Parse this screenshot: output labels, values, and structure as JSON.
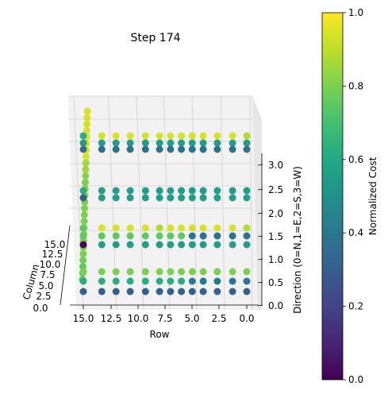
{
  "chart_data": {
    "type": "scatter",
    "title": "Step 174",
    "xlabel": "Row",
    "ylabel": "Column",
    "zlabel": "Direction (0=N,1=E,2=S,3=W)",
    "colorbar_label": "Normalized Cost",
    "colormap": "viridis",
    "xlim": [
      0,
      16
    ],
    "ylim": [
      0,
      16
    ],
    "zlim": [
      0,
      3
    ],
    "row_ticks": [
      "15.0",
      "12.5",
      "10.0",
      "7.5",
      "5.0",
      "2.5",
      "0.0"
    ],
    "col_ticks": [
      "15.0",
      "12.5",
      "10.0",
      "7.5",
      "5.0",
      "2.5",
      "0.0"
    ],
    "z_ticks": [
      "0.0",
      "0.5",
      "1.0",
      "1.5",
      "2.0",
      "2.5",
      "3.0"
    ],
    "cbar_ticks": [
      "0.0",
      "0.2",
      "0.4",
      "0.6",
      "0.8",
      "1.0"
    ],
    "rows_x": [
      15,
      13.3,
      12,
      10.7,
      9.3,
      8,
      7,
      6,
      5,
      4,
      2.7,
      1.3,
      0
    ],
    "layers": [
      {
        "direction": 3,
        "values": [
          0.62,
          0.94,
          0.94,
          0.94,
          0.94,
          0.94,
          0.94,
          0.94,
          0.94,
          0.94,
          0.94,
          0.94,
          0.88
        ]
      },
      {
        "direction": 3,
        "values": [
          0.55,
          0.55,
          0.55,
          0.55,
          0.55,
          0.55,
          0.55,
          0.55,
          0.55,
          0.55,
          0.55,
          0.55,
          0.55
        ]
      },
      {
        "direction": 3,
        "values": [
          0.37,
          0.37,
          0.37,
          0.37,
          0.37,
          0.37,
          0.37,
          0.37,
          0.37,
          0.37,
          0.37,
          0.37,
          0.37
        ]
      },
      {
        "direction": 2,
        "values": [
          0.62,
          0.55,
          0.55,
          0.55,
          0.55,
          0.55,
          0.55,
          0.55,
          0.55,
          0.55,
          0.55,
          0.55,
          0.55
        ]
      },
      {
        "direction": 2,
        "values": [
          0.3,
          0.55,
          0.55,
          0.55,
          0.55,
          0.55,
          0.55,
          0.55,
          0.55,
          0.55,
          0.55,
          0.55,
          0.55
        ]
      },
      {
        "direction": 1,
        "values": [
          0.75,
          0.94,
          0.94,
          0.94,
          0.94,
          0.88,
          0.94,
          0.94,
          0.94,
          0.94,
          0.94,
          0.94,
          0.88
        ]
      },
      {
        "direction": 1,
        "values": [
          0.75,
          0.75,
          0.75,
          0.75,
          0.75,
          0.75,
          0.75,
          0.75,
          0.37,
          0.37,
          0.37,
          0.37,
          0.37
        ]
      },
      {
        "direction": 1,
        "values": [
          0.02,
          0.55,
          0.55,
          0.55,
          0.55,
          0.55,
          0.55,
          0.55,
          0.55,
          0.55,
          0.55,
          0.55,
          0.55
        ]
      },
      {
        "direction": 0,
        "values": [
          0.8,
          0.8,
          0.8,
          0.8,
          0.8,
          0.8,
          0.8,
          0.8,
          0.8,
          0.8,
          0.8,
          0.8,
          0.8
        ]
      },
      {
        "direction": 0,
        "values": [
          0.62,
          0.62,
          0.62,
          0.62,
          0.62,
          0.62,
          0.62,
          0.62,
          0.4,
          0.4,
          0.4,
          0.4,
          0.4
        ]
      },
      {
        "direction": 0,
        "values": [
          0.3,
          0.3,
          0.3,
          0.3,
          0.3,
          0.3,
          0.3,
          0.3,
          0.3,
          0.3,
          0.3,
          0.3,
          0.3
        ]
      }
    ],
    "column_line": {
      "row": 15,
      "values_bottom_to_top": [
        0.75,
        0.75,
        0.75,
        0.78,
        0.8,
        0.8,
        0.8,
        0.8,
        0.8,
        0.8,
        0.8,
        0.8,
        0.8,
        0.8,
        0.8,
        0.8,
        0.82,
        0.85,
        0.85,
        0.94,
        0.94,
        0.94,
        0.94,
        0.94,
        0.94,
        0.94,
        0.94
      ]
    }
  }
}
